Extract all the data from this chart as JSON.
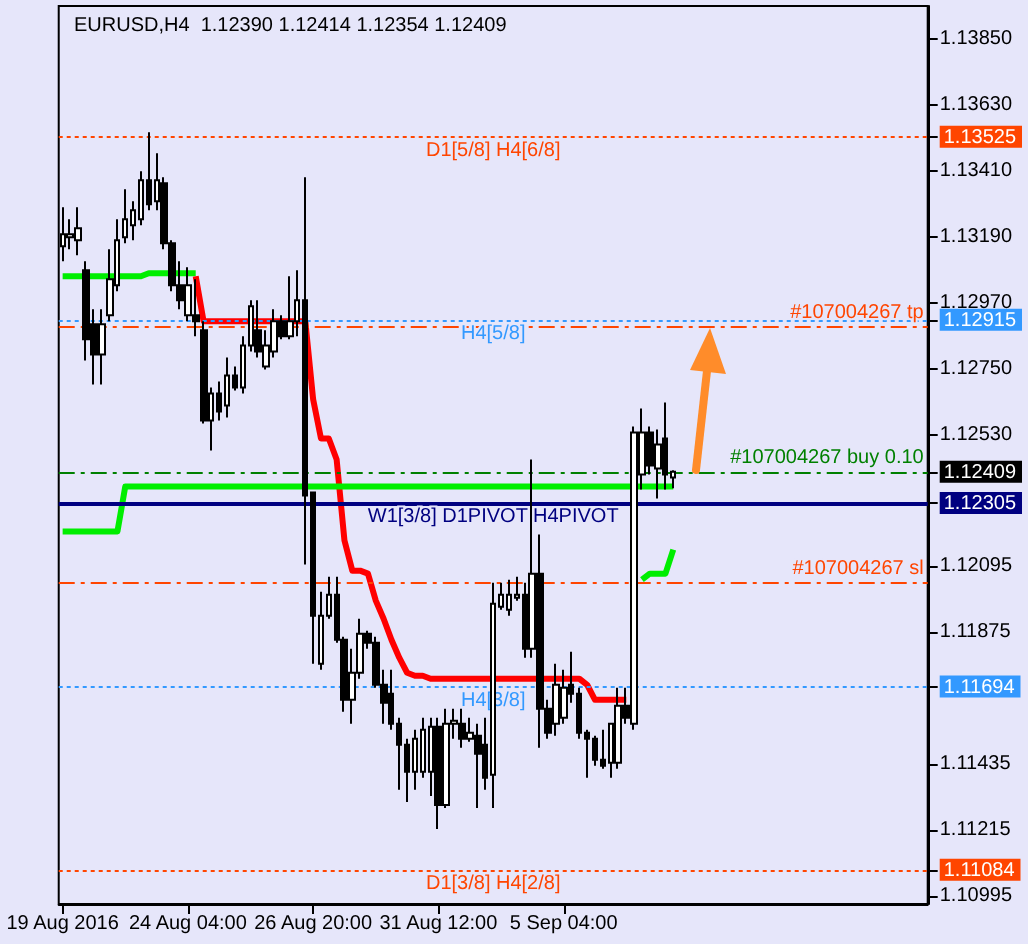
{
  "chart_data": {
    "type": "candlestick",
    "title": "EURUSD,H4  1.12390 1.12414 1.12354 1.12409",
    "categories": [
      "19 Aug 2016",
      null,
      null,
      null,
      null,
      null,
      null,
      null,
      null,
      null,
      null,
      null,
      null,
      null,
      null,
      null,
      "24 Aug 04:00",
      null,
      null,
      null,
      null,
      null,
      null,
      null,
      null,
      null,
      null,
      null,
      null,
      null,
      null,
      null,
      "26 Aug 20:00",
      null,
      null,
      null,
      null,
      null,
      null,
      null,
      null,
      null,
      null,
      null,
      null,
      null,
      null,
      null,
      "31 Aug 12:00",
      null,
      null,
      null,
      null,
      null,
      null,
      null,
      null,
      null,
      null,
      null,
      null,
      null,
      null,
      null,
      "5 Sep 04:00",
      null,
      null,
      null,
      null,
      null,
      null,
      null,
      null,
      null,
      null,
      null,
      null,
      null,
      null
    ],
    "ohlc": [
      [
        1.1316,
        1.1329,
        1.1311,
        1.132
      ],
      [
        1.1319,
        1.1325,
        1.1315,
        1.132
      ],
      [
        1.1318,
        1.1329,
        1.1313,
        1.1322
      ],
      [
        1.1308,
        1.1311,
        1.1278,
        1.1285
      ],
      [
        1.129,
        1.1295,
        1.127,
        1.128
      ],
      [
        1.128,
        1.1295,
        1.127,
        1.129
      ],
      [
        1.1293,
        1.1315,
        1.1291,
        1.1305
      ],
      [
        1.1303,
        1.1325,
        1.1301,
        1.1318
      ],
      [
        1.1319,
        1.1335,
        1.1317,
        1.1325
      ],
      [
        1.1323,
        1.1331,
        1.1318,
        1.1328
      ],
      [
        1.1325,
        1.1341,
        1.1323,
        1.1338
      ],
      [
        1.1338,
        1.1354,
        1.1328,
        1.133
      ],
      [
        1.1331,
        1.1347,
        1.1328,
        1.1338
      ],
      [
        1.1337,
        1.1339,
        1.1315,
        1.1317
      ],
      [
        1.1317,
        1.1318,
        1.1301,
        1.1303
      ],
      [
        1.1303,
        1.1311,
        1.1295,
        1.1298
      ],
      [
        1.1293,
        1.1309,
        1.1291,
        1.1303
      ],
      [
        1.1293,
        1.1305,
        1.1286,
        1.1291
      ],
      [
        1.1288,
        1.1291,
        1.1257,
        1.1258
      ],
      [
        1.1258,
        1.1269,
        1.1248,
        1.1267
      ],
      [
        1.1267,
        1.1271,
        1.1258,
        1.1261
      ],
      [
        1.1263,
        1.1279,
        1.1259,
        1.1273
      ],
      [
        1.1273,
        1.1276,
        1.1268,
        1.1269
      ],
      [
        1.1269,
        1.1286,
        1.1267,
        1.1283
      ],
      [
        1.1283,
        1.1298,
        1.1281,
        1.1296
      ],
      [
        1.1288,
        1.1298,
        1.1279,
        1.1281
      ],
      [
        1.1276,
        1.1288,
        1.1275,
        1.1283
      ],
      [
        1.1281,
        1.1295,
        1.1279,
        1.1291
      ],
      [
        1.1291,
        1.1293,
        1.1285,
        1.1286
      ],
      [
        1.1286,
        1.1306,
        1.1285,
        1.1291
      ],
      [
        1.1291,
        1.1308,
        1.1286,
        1.1298
      ],
      [
        1.1298,
        1.1339,
        1.121,
        1.1233
      ],
      [
        1.1234,
        1.1234,
        1.1177,
        1.1193
      ],
      [
        1.1177,
        1.1201,
        1.1175,
        1.1193
      ],
      [
        1.1193,
        1.1206,
        1.1192,
        1.12
      ],
      [
        1.12,
        1.1206,
        1.1184,
        1.1185
      ],
      [
        1.1185,
        1.1186,
        1.1161,
        1.1165
      ],
      [
        1.1165,
        1.1182,
        1.1157,
        1.1174
      ],
      [
        1.1174,
        1.1192,
        1.1172,
        1.1187
      ],
      [
        1.1187,
        1.1188,
        1.1182,
        1.1184
      ],
      [
        1.1184,
        1.1186,
        1.1169,
        1.117
      ],
      [
        1.117,
        1.1175,
        1.1157,
        1.1164
      ],
      [
        1.1167,
        1.1175,
        1.1155,
        1.1157
      ],
      [
        1.1157,
        1.1159,
        1.1135,
        1.115
      ],
      [
        1.115,
        1.1152,
        1.1131,
        1.1141
      ],
      [
        1.1141,
        1.1155,
        1.1135,
        1.1152
      ],
      [
        1.1141,
        1.1159,
        1.1139,
        1.1155
      ],
      [
        1.1141,
        1.1159,
        1.1133,
        1.1156
      ],
      [
        1.1156,
        1.1159,
        1.1122,
        1.113
      ],
      [
        1.113,
        1.1162,
        1.1129,
        1.1157
      ],
      [
        1.1157,
        1.1162,
        1.1152,
        1.1158
      ],
      [
        1.1157,
        1.1162,
        1.1149,
        1.1152
      ],
      [
        1.1152,
        1.1159,
        1.1151,
        1.1154
      ],
      [
        1.1153,
        1.1157,
        1.1129,
        1.1147
      ],
      [
        1.115,
        1.1159,
        1.1135,
        1.1139
      ],
      [
        1.114,
        1.1204,
        1.1129,
        1.1197
      ],
      [
        1.1196,
        1.1204,
        1.1195,
        1.12
      ],
      [
        1.1195,
        1.1205,
        1.1193,
        1.12
      ],
      [
        1.1199,
        1.1206,
        1.1198,
        1.12
      ],
      [
        1.12,
        1.1204,
        1.1179,
        1.1182
      ],
      [
        1.1182,
        1.1245,
        1.1179,
        1.1207
      ],
      [
        1.1207,
        1.122,
        1.1149,
        1.1162
      ],
      [
        1.1162,
        1.1165,
        1.1152,
        1.1154
      ],
      [
        1.1157,
        1.1177,
        1.1153,
        1.117
      ],
      [
        1.1159,
        1.1175,
        1.1157,
        1.1169
      ],
      [
        1.117,
        1.1181,
        1.1164,
        1.1167
      ],
      [
        1.1167,
        1.1169,
        1.1152,
        1.1154
      ],
      [
        1.1154,
        1.1155,
        1.1139,
        1.1152
      ],
      [
        1.1152,
        1.1153,
        1.1143,
        1.1145
      ],
      [
        1.1145,
        1.1155,
        1.1142,
        1.1143
      ],
      [
        1.1144,
        1.1157,
        1.1139,
        1.1157
      ],
      [
        1.1144,
        1.1169,
        1.1142,
        1.1163
      ],
      [
        1.1163,
        1.1169,
        1.1157,
        1.1159
      ],
      [
        1.1157,
        1.1256,
        1.1155,
        1.1254
      ],
      [
        1.124,
        1.1262,
        1.1235,
        1.1254
      ],
      [
        1.1254,
        1.1256,
        1.124,
        1.1243
      ],
      [
        1.1242,
        1.1255,
        1.1232,
        1.125
      ],
      [
        1.1252,
        1.1264,
        1.1235,
        1.124
      ],
      [
        1.1239,
        1.12414,
        1.12354,
        1.12409
      ]
    ],
    "series": [
      {
        "type": "line",
        "color": "#00ee00",
        "values": [
          1.1306,
          1.1306,
          1.1306,
          1.1306,
          1.1306,
          1.1306,
          1.1306,
          1.1306,
          1.1306,
          1.1306,
          1.1306,
          1.1307,
          1.1307,
          1.1307,
          1.1307,
          1.1307,
          1.1307,
          1.1307,
          null,
          null,
          null,
          null,
          null,
          null,
          null,
          null,
          null,
          null,
          null,
          null,
          null,
          null,
          null,
          null,
          null,
          null,
          null,
          null,
          null,
          null,
          null,
          null,
          null,
          null,
          null,
          null,
          null,
          null,
          null,
          null,
          null,
          null,
          null,
          null,
          null,
          null,
          null,
          null,
          null,
          null,
          null,
          null,
          null,
          null,
          null,
          null,
          null,
          null,
          null,
          null,
          null,
          null,
          null,
          null,
          1.1205,
          1.1207,
          1.1207,
          1.1207,
          1.1215
        ]
      },
      {
        "type": "line",
        "color": "#ff0000",
        "values": [
          null,
          null,
          null,
          null,
          null,
          null,
          null,
          null,
          null,
          null,
          null,
          null,
          null,
          null,
          null,
          null,
          null,
          1.1306,
          1.1291,
          1.1291,
          1.1291,
          1.1291,
          1.1291,
          1.1291,
          1.1291,
          1.1291,
          1.1291,
          1.1291,
          1.1291,
          1.1291,
          1.1291,
          1.1291,
          1.1265,
          1.1252,
          1.1252,
          1.1245,
          1.1218,
          1.1208,
          1.1208,
          1.1207,
          1.1198,
          1.1192,
          1.1185,
          1.1179,
          1.1174,
          1.1173,
          1.1173,
          1.1172,
          1.1172,
          1.1172,
          1.1172,
          1.1172,
          1.1172,
          1.1172,
          1.1172,
          1.1172,
          1.1172,
          1.1172,
          1.1172,
          1.1172,
          1.1172,
          1.1172,
          1.1172,
          1.1172,
          1.1172,
          1.1172,
          1.1172,
          1.117,
          1.1165,
          1.1165,
          1.1165,
          1.1165,
          1.1165,
          null,
          null,
          null,
          null,
          null,
          null
        ]
      },
      {
        "type": "line",
        "color": "#00ee00",
        "values": [
          1.1221,
          1.1221,
          1.1221,
          1.1221,
          1.1221,
          1.1221,
          1.1221,
          1.1221,
          1.1236,
          1.1236,
          1.1236,
          1.1236,
          1.1236,
          1.1236,
          1.1236,
          1.1236,
          1.1236,
          1.1236,
          1.1236,
          1.1236,
          1.1236,
          1.1236,
          1.1236,
          1.1236,
          1.1236,
          1.1236,
          1.1236,
          1.1236,
          1.1236,
          1.1236,
          1.1236,
          1.1236,
          1.1236,
          1.1236,
          1.1236,
          1.1236,
          1.1236,
          1.1236,
          1.1236,
          1.1236,
          1.1236,
          1.1236,
          1.1236,
          1.1236,
          1.1236,
          1.1236,
          1.1236,
          1.1236,
          1.1236,
          1.1236,
          1.1236,
          1.1236,
          1.1236,
          1.1236,
          1.1236,
          1.1236,
          1.1236,
          1.1236,
          1.1236,
          1.1236,
          1.1236,
          1.1236,
          1.1236,
          1.1236,
          1.1236,
          1.1236,
          1.1236,
          1.1236,
          1.1236,
          1.1236,
          1.1236,
          1.1236,
          1.1236,
          1.1236,
          1.1236,
          1.1236,
          1.1236,
          1.1236,
          1.1236
        ]
      }
    ],
    "ylim": [
      1.1097,
      1.1396
    ],
    "yticks": [
      1.10995,
      1.11084,
      1.11215,
      1.11435,
      1.11694,
      1.11875,
      1.12095,
      1.12305,
      1.12409,
      {
        "value": 1.1253,
        "label": "1.12530"
      },
      {
        "value": 1.1275,
        "label": "1.12750"
      },
      1.12915,
      {
        "value": 1.1297,
        "label": "1.12970"
      },
      {
        "value": 1.1319,
        "label": "1.13190"
      },
      {
        "value": 1.1341,
        "label": "1.13410"
      },
      1.13525,
      {
        "value": 1.1363,
        "label": "1.13630"
      },
      {
        "value": 1.1385,
        "label": "1.13850"
      }
    ],
    "ref_lines": [
      {
        "axis": "y",
        "value": 1.13525,
        "label": "D1[5/8] H4[6/8]",
        "color": "#ff4500",
        "line_style": "dotted"
      },
      {
        "axis": "y",
        "value": 1.12915,
        "label": "H4[5/8]",
        "color": "#3399ff",
        "line_style": "dotted"
      },
      {
        "axis": "y",
        "value": 1.1289,
        "label": "#107004267 tp",
        "color": "#ff4500",
        "line_style": "dashed"
      },
      {
        "axis": "y",
        "value": 1.12409,
        "label": "#107004267 buy 0.10",
        "color": "#008000",
        "line_style": "dashed"
      },
      {
        "axis": "y",
        "value": 1.12305,
        "label": "W1[3/8] D1PIVOT H4PIVOT",
        "color": "#000080",
        "line_style": "solid"
      },
      {
        "axis": "y",
        "value": 1.1204,
        "label": "#107004267 sl",
        "color": "#ff4500",
        "line_style": "dashed"
      },
      {
        "axis": "y",
        "value": 1.11694,
        "label": "H4[3/8]",
        "color": "#3399ff",
        "line_style": "dotted"
      },
      {
        "axis": "y",
        "value": 1.11084,
        "label": "D1[3/8] H4[2/8]",
        "color": "#ff4500",
        "line_style": "dotted"
      }
    ],
    "marker": "none"
  }
}
